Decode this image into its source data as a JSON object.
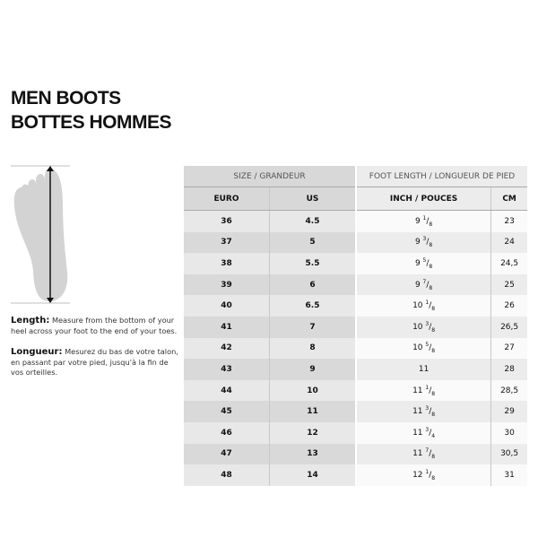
{
  "title": {
    "line1": "MEN BOOTS",
    "line2": "BOTTES HOMMES"
  },
  "instructions": {
    "en_label": "Length:",
    "en_text": "Measure from the bottom of your heel across your foot to the end of your toes.",
    "fr_label": "Longueur:",
    "fr_text": "Mesurez du bas de votre talon, en passant par votre pied, jusqu'à la fin de vos orteilles."
  },
  "table": {
    "group_headers": [
      "SIZE / GRANDEUR",
      "FOOT LENGTH / LONGUEUR DE PIED"
    ],
    "columns": [
      "EURO",
      "US",
      "INCH / POUCES",
      "CM"
    ],
    "rows": [
      {
        "euro": "36",
        "us": "4.5",
        "inch": {
          "whole": "9",
          "num": "1",
          "den": "8"
        },
        "cm": "23"
      },
      {
        "euro": "37",
        "us": "5",
        "inch": {
          "whole": "9",
          "num": "3",
          "den": "8"
        },
        "cm": "24"
      },
      {
        "euro": "38",
        "us": "5.5",
        "inch": {
          "whole": "9",
          "num": "5",
          "den": "8"
        },
        "cm": "24,5"
      },
      {
        "euro": "39",
        "us": "6",
        "inch": {
          "whole": "9",
          "num": "7",
          "den": "8"
        },
        "cm": "25"
      },
      {
        "euro": "40",
        "us": "6.5",
        "inch": {
          "whole": "10",
          "num": "1",
          "den": "8"
        },
        "cm": "26"
      },
      {
        "euro": "41",
        "us": "7",
        "inch": {
          "whole": "10",
          "num": "3",
          "den": "8"
        },
        "cm": "26,5"
      },
      {
        "euro": "42",
        "us": "8",
        "inch": {
          "whole": "10",
          "num": "5",
          "den": "8"
        },
        "cm": "27"
      },
      {
        "euro": "43",
        "us": "9",
        "inch": {
          "whole": "11",
          "num": "",
          "den": ""
        },
        "cm": "28"
      },
      {
        "euro": "44",
        "us": "10",
        "inch": {
          "whole": "11",
          "num": "1",
          "den": "8"
        },
        "cm": "28,5"
      },
      {
        "euro": "45",
        "us": "11",
        "inch": {
          "whole": "11",
          "num": "3",
          "den": "8"
        },
        "cm": "29"
      },
      {
        "euro": "46",
        "us": "12",
        "inch": {
          "whole": "11",
          "num": "3",
          "den": "4"
        },
        "cm": "30"
      },
      {
        "euro": "47",
        "us": "13",
        "inch": {
          "whole": "11",
          "num": "7",
          "den": "8"
        },
        "cm": "30,5"
      },
      {
        "euro": "48",
        "us": "14",
        "inch": {
          "whole": "12",
          "num": "1",
          "den": "8"
        },
        "cm": "31"
      }
    ]
  }
}
